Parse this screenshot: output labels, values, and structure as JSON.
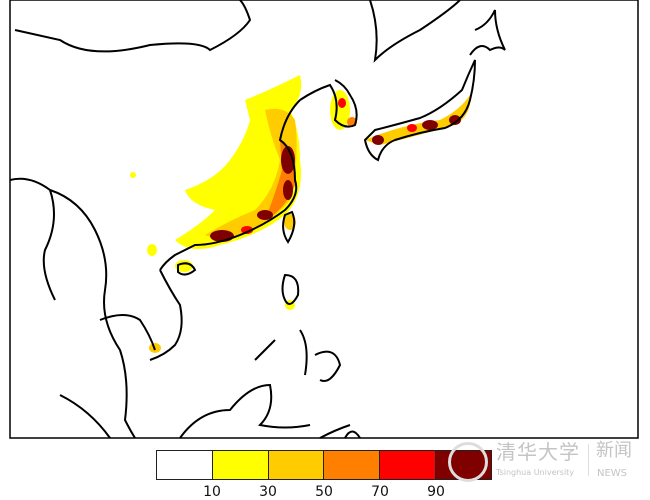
{
  "colorbar": {
    "colors": [
      "#ffffff",
      "#ffff00",
      "#ffcc00",
      "#ff8000",
      "#ff0000",
      "#800000"
    ],
    "ticks": [
      "10",
      "30",
      "50",
      "70",
      "90"
    ]
  },
  "watermark": {
    "chinese": "清华大学",
    "english": "Tsinghua University",
    "news_chinese": "新闻",
    "news_english": "NEWS"
  },
  "map": {
    "region": "East and Southeast Asia",
    "coastline_color": "#000000"
  }
}
